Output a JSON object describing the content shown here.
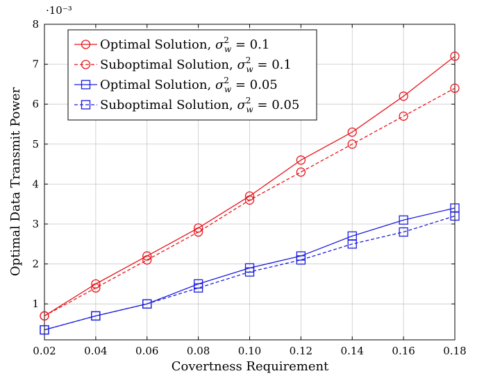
{
  "chart_data": {
    "type": "line",
    "title": "",
    "xlabel": "Covertness Requirement",
    "ylabel": "Optimal Data Transmit Power",
    "y_multiplier_label": "·10⁻³",
    "x": [
      0.02,
      0.04,
      0.06,
      0.08,
      0.1,
      0.12,
      0.14,
      0.16,
      0.18
    ],
    "x_tick_labels": [
      "0.02",
      "0.04",
      "0.06",
      "0.08",
      "0.10",
      "0.12",
      "0.14",
      "0.16",
      "0.18"
    ],
    "y_ticks": [
      1,
      2,
      3,
      4,
      5,
      6,
      7,
      8
    ],
    "y_tick_labels": [
      "1",
      "2",
      "3",
      "4",
      "5",
      "6",
      "7",
      "8"
    ],
    "xlim": [
      0.02,
      0.18
    ],
    "ylim": [
      0.1,
      8
    ],
    "grid": true,
    "legend_position": "top-left",
    "series": [
      {
        "name": "Optimal Solution, σ²_w = 0.1",
        "legend_main": "Optimal Solution, ",
        "legend_eq": " = 0.1",
        "color": "#e8131a",
        "marker": "circle",
        "dashed": false,
        "values": [
          0.7,
          1.5,
          2.2,
          2.9,
          3.7,
          4.6,
          5.3,
          6.2,
          7.2
        ]
      },
      {
        "name": "Suboptimal Solution, σ²_w = 0.1",
        "legend_main": "Suboptimal Solution, ",
        "legend_eq": " = 0.1",
        "color": "#e8131a",
        "marker": "circle",
        "dashed": true,
        "values": [
          0.7,
          1.4,
          2.1,
          2.8,
          3.6,
          4.3,
          5.0,
          5.7,
          6.4
        ]
      },
      {
        "name": "Optimal Solution, σ²_w = 0.05",
        "legend_main": "Optimal Solution, ",
        "legend_eq": " = 0.05",
        "color": "#1a1ae0",
        "marker": "square",
        "dashed": false,
        "values": [
          0.35,
          0.7,
          1.0,
          1.5,
          1.9,
          2.2,
          2.7,
          3.1,
          3.4
        ]
      },
      {
        "name": "Suboptimal Solution, σ²_w = 0.05",
        "legend_main": "Suboptimal Solution, ",
        "legend_eq": " = 0.05",
        "color": "#1a1ae0",
        "marker": "square",
        "dashed": true,
        "values": [
          0.35,
          0.7,
          1.0,
          1.4,
          1.8,
          2.1,
          2.5,
          2.8,
          3.2
        ]
      }
    ]
  }
}
